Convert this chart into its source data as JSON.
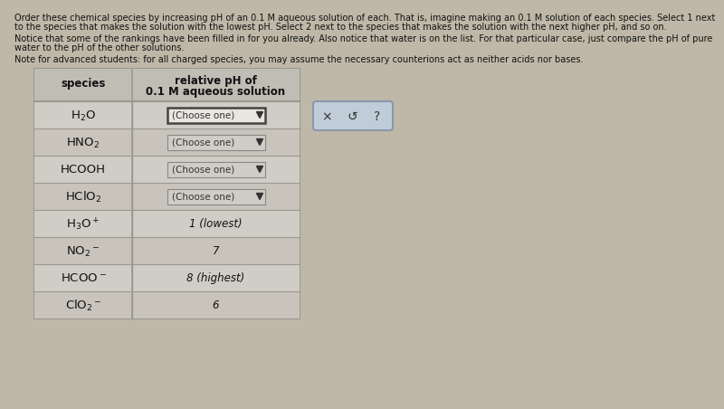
{
  "title_lines": [
    "Order these chemical species by increasing pH of an 0.1 M aqueous solution of each. That is, imagine making an 0.1 M solution of each species. Select 1 next",
    "to the species that makes the solution with the lowest pH. Select 2 next to the species that makes the solution with the next higher pH, and so on."
  ],
  "notice_lines": [
    "Notice that some of the rankings have been filled in for you already. Also notice that water is on the list. For that particular case, just compare the pH of pure",
    "water to the pH of the other solutions."
  ],
  "note_line": "Note for advanced students: for all charged species, you may assume the necessary counterions act as neither acids nor bases.",
  "rows": [
    {
      "species": "H$_2$O",
      "value": "(Choose one)",
      "has_dropdown": true,
      "outlined": true
    },
    {
      "species": "HNO$_2$",
      "value": "(Choose one)",
      "has_dropdown": true,
      "outlined": false
    },
    {
      "species": "HCOOH",
      "value": "(Choose one)",
      "has_dropdown": true,
      "outlined": false
    },
    {
      "species": "HClO$_2$",
      "value": "(Choose one)",
      "has_dropdown": true,
      "outlined": false
    },
    {
      "species": "H$_3$O$^+$",
      "value": "1 (lowest)",
      "has_dropdown": false,
      "outlined": false
    },
    {
      "species": "NO$_2$$^-$",
      "value": "7",
      "has_dropdown": false,
      "outlined": false
    },
    {
      "species": "HCOO$^-$",
      "value": "8 (highest)",
      "has_dropdown": false,
      "outlined": false
    },
    {
      "species": "ClO$_2$$^-$",
      "value": "6",
      "has_dropdown": false,
      "outlined": false
    }
  ],
  "bg_color": "#bfb8a8",
  "table_bg_light": "#d0cdc6",
  "table_bg_dark": "#c8c4bc",
  "header_bg": "#c0bdb5",
  "cell_border": "#999990",
  "text_color": "#111111",
  "btn_box_bg": "#c0ccd8",
  "btn_box_border": "#8899aa",
  "font_size_title": 7.0,
  "font_size_table_sp": 9.5,
  "font_size_table_val": 8.5,
  "font_size_header": 8.5,
  "font_size_dd": 7.5
}
